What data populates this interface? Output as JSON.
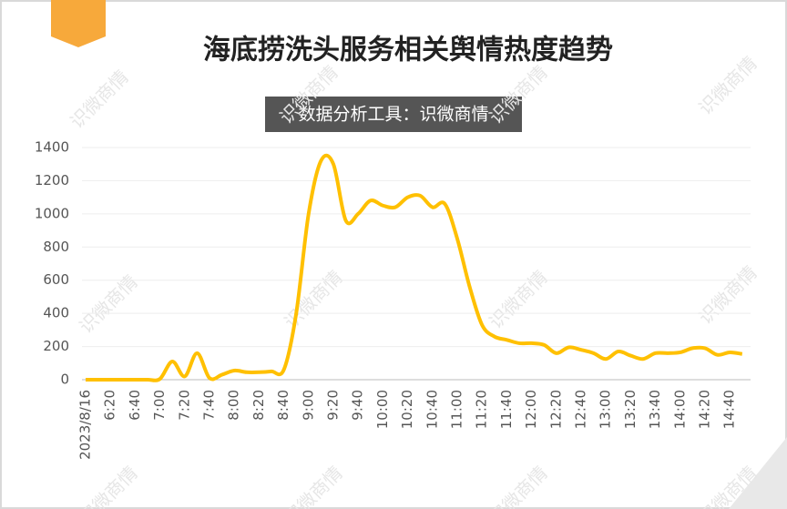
{
  "chart_data": {
    "type": "line",
    "title": "海底捞洗头服务相关舆情热度趋势",
    "subtitle": "数据分析工具：识微商情",
    "watermark": "识微商情",
    "categories": [
      "2023/8/16",
      null,
      "6:20",
      null,
      "6:40",
      null,
      "7:00",
      null,
      "7:20",
      null,
      "7:40",
      null,
      "8:00",
      null,
      "8:20",
      null,
      "8:40",
      null,
      "9:00",
      null,
      "9:20",
      null,
      "9:40",
      null,
      "10:00",
      null,
      "10:20",
      null,
      "10:40",
      null,
      "11:00",
      null,
      "11:20",
      null,
      "11:40",
      null,
      "12:00",
      null,
      "12:20",
      null,
      "12:40",
      null,
      "13:00",
      null,
      "13:20",
      null,
      "13:40",
      null,
      "14:00",
      null,
      "14:20",
      null,
      "14:40",
      null
    ],
    "values": [
      0,
      0,
      0,
      0,
      0,
      0,
      5,
      110,
      20,
      160,
      10,
      30,
      55,
      45,
      45,
      50,
      60,
      400,
      1000,
      1320,
      1300,
      960,
      1000,
      1080,
      1050,
      1040,
      1100,
      1110,
      1040,
      1060,
      850,
      560,
      330,
      260,
      240,
      220,
      220,
      210,
      160,
      195,
      180,
      160,
      125,
      170,
      145,
      125,
      160,
      160,
      165,
      190,
      190,
      150,
      165,
      155
    ],
    "color": "#ffc000",
    "ylim": [
      0,
      1400
    ],
    "yticks": [
      0,
      200,
      400,
      600,
      800,
      1000,
      1200,
      1400
    ],
    "grid": true
  }
}
